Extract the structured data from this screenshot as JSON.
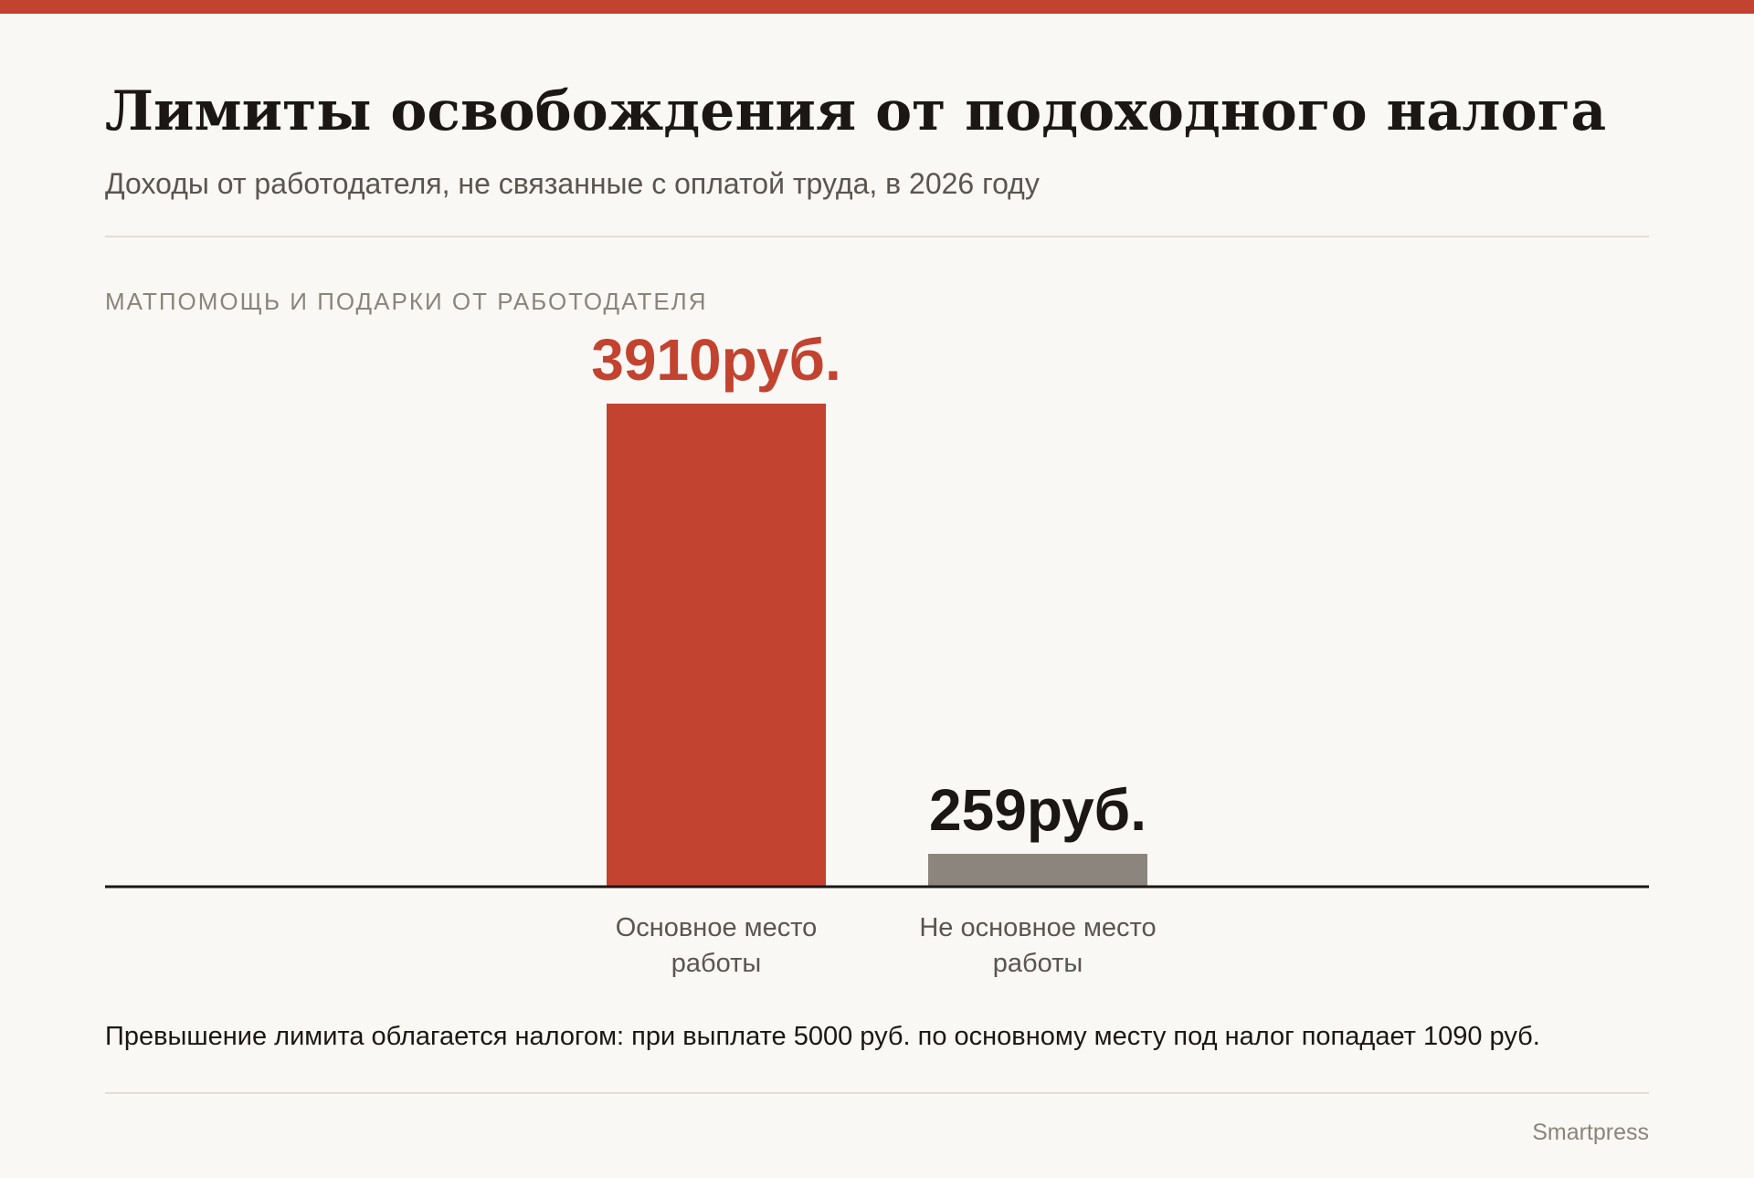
{
  "header": {
    "title": "Лимиты освобождения от подоходного налога",
    "subtitle": "Доходы от работодателя, не связанные с оплатой труда, в 2026 году"
  },
  "section_label": "МАТПОМОЩЬ И ПОДАРКИ ОТ РАБОТОДАТЕЛЯ",
  "chart_data": {
    "type": "bar",
    "categories": [
      [
        "Основное место",
        "работы"
      ],
      [
        "Не основное место",
        "работы"
      ]
    ],
    "values": [
      3910,
      259
    ],
    "value_labels": [
      "3910руб.",
      "259руб."
    ],
    "unit": "руб.",
    "ylim": [
      0,
      3910
    ],
    "grid": false,
    "legend": "none",
    "colors": {
      "bars": [
        "#c2432f",
        "#8c857d"
      ],
      "value_labels": [
        "#c2432f",
        "#1a1714"
      ],
      "baseline": "#1a1714"
    }
  },
  "footnote": "Превышение лимита облагается налогом: при выплате 5000 руб. по основному месту под налог попадает 1090 руб.",
  "source": "Smartpress"
}
